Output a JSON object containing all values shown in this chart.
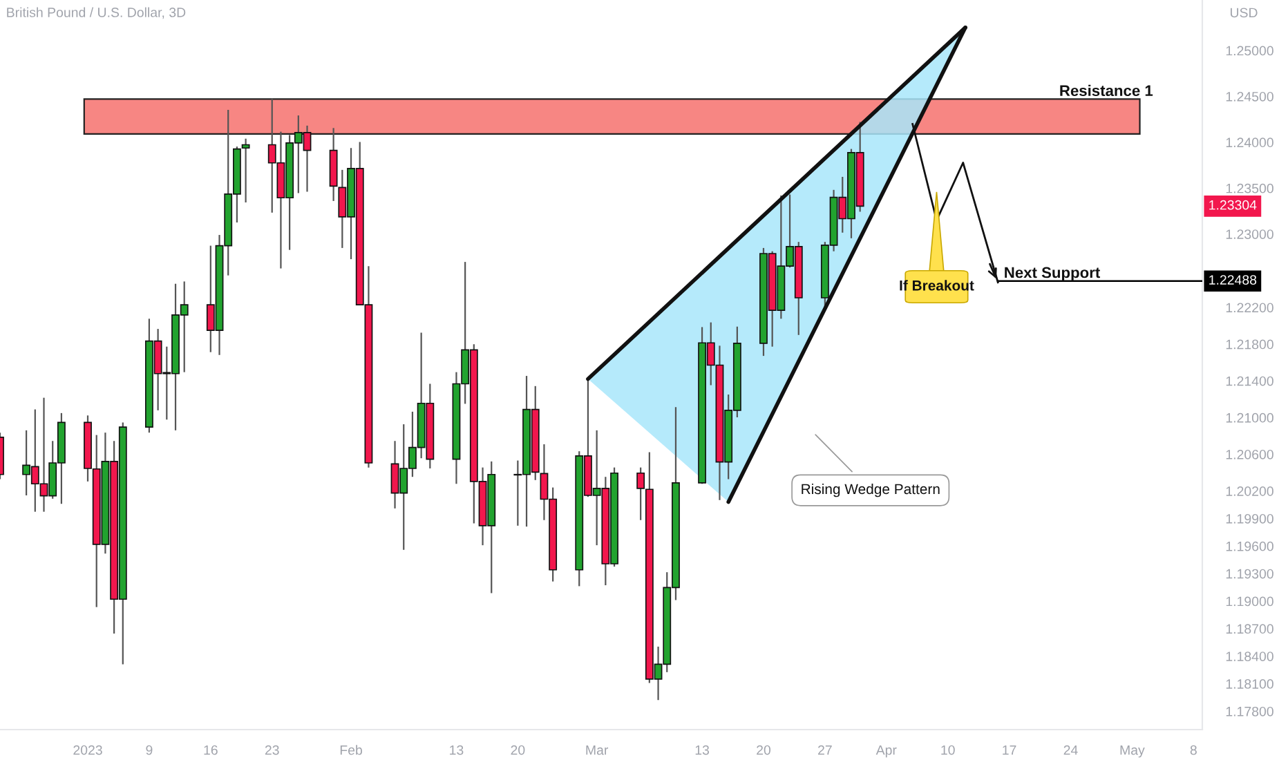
{
  "chart_data": {
    "type": "candlestick",
    "title": "British Pound / U.S. Dollar, 3D",
    "ylabel": "USD",
    "x": [
      "2022-12-23",
      "2022-12-26",
      "2022-12-27",
      "2022-12-28",
      "2022-12-29",
      "2022-12-30",
      "2023-01-02",
      "2023-01-03",
      "2023-01-04",
      "2023-01-05",
      "2023-01-06",
      "2023-01-09",
      "2023-01-10",
      "2023-01-11",
      "2023-01-12",
      "2023-01-13",
      "2023-01-16",
      "2023-01-17",
      "2023-01-18",
      "2023-01-19",
      "2023-01-20",
      "2023-01-23",
      "2023-01-24",
      "2023-01-25",
      "2023-01-26",
      "2023-01-27",
      "2023-01-30",
      "2023-01-31",
      "2023-02-01",
      "2023-02-02",
      "2023-02-03",
      "2023-02-06",
      "2023-02-07",
      "2023-02-08",
      "2023-02-09",
      "2023-02-10",
      "2023-02-13",
      "2023-02-14",
      "2023-02-15",
      "2023-02-16",
      "2023-02-17",
      "2023-02-20",
      "2023-02-21",
      "2023-02-22",
      "2023-02-23",
      "2023-02-24",
      "2023-02-27",
      "2023-02-28",
      "2023-03-01",
      "2023-03-02",
      "2023-03-03",
      "2023-03-06",
      "2023-03-07",
      "2023-03-08",
      "2023-03-09",
      "2023-03-10",
      "2023-03-13",
      "2023-03-14",
      "2023-03-15",
      "2023-03-16",
      "2023-03-17",
      "2023-03-20",
      "2023-03-21",
      "2023-03-22",
      "2023-03-23",
      "2023-03-24",
      "2023-03-27",
      "2023-03-28",
      "2023-03-29",
      "2023-03-30",
      "2023-03-31"
    ],
    "ohlc": [
      [
        1.20785,
        1.20836,
        1.20329,
        1.2038
      ],
      [
        1.2038,
        1.20861,
        1.20152,
        1.20481
      ],
      [
        1.20466,
        1.21089,
        1.19974,
        1.20278
      ],
      [
        1.20278,
        1.21216,
        1.19974,
        1.20147
      ],
      [
        1.20147,
        1.20745,
        1.20116,
        1.20506
      ],
      [
        1.20506,
        1.21049,
        1.2006,
        1.20947
      ],
      [
        1.20947,
        1.21023,
        1.20304,
        1.20446
      ],
      [
        1.2044,
        1.2081,
        1.18935,
        1.19619
      ],
      [
        1.19619,
        1.20836,
        1.19518,
        1.20522
      ],
      [
        1.20522,
        1.20745,
        1.18646,
        1.19021
      ],
      [
        1.19021,
        1.20947,
        1.18312,
        1.20897
      ],
      [
        1.20897,
        1.22077,
        1.20836,
        1.21834
      ],
      [
        1.21834,
        1.21966,
        1.21079,
        1.21479
      ],
      [
        1.21479,
        1.21773,
        1.20978,
        1.2149
      ],
      [
        1.21479,
        1.22458,
        1.20861,
        1.22118
      ],
      [
        1.22118,
        1.22483,
        1.21495,
        1.22229
      ],
      [
        1.22229,
        1.22873,
        1.21713,
        1.21951
      ],
      [
        1.21951,
        1.2299,
        1.21682,
        1.22873
      ],
      [
        1.22873,
        1.24353,
        1.22549,
        1.23436
      ],
      [
        1.23436,
        1.23953,
        1.23126,
        1.23927
      ],
      [
        1.23937,
        1.24039,
        1.23344,
        1.23973
      ],
      [
        1.23973,
        1.24475,
        1.23233,
        1.23775
      ],
      [
        1.23775,
        1.24115,
        1.22625,
        1.23395
      ],
      [
        1.23395,
        1.24079,
        1.22827,
        1.23993
      ],
      [
        1.23993,
        1.24292,
        1.23446,
        1.24105
      ],
      [
        1.24105,
        1.24181,
        1.23461,
        1.23912
      ],
      [
        1.23912,
        1.24155,
        1.2336,
        1.23522
      ],
      [
        1.23507,
        1.23699,
        1.22848,
        1.23187
      ],
      [
        1.23187,
        1.23937,
        1.22726,
        1.23714
      ],
      [
        1.23714,
        1.24003,
        1.22229,
        1.22229
      ],
      [
        1.22229,
        1.2265,
        1.20456,
        1.20506
      ],
      [
        1.20496,
        1.20745,
        1.2001,
        1.20177
      ],
      [
        1.20177,
        1.20927,
        1.19559,
        1.20446
      ],
      [
        1.20446,
        1.21064,
        1.20354,
        1.20674
      ],
      [
        1.20674,
        1.21925,
        1.20557,
        1.21155
      ],
      [
        1.21155,
        1.21368,
        1.20446,
        1.20547
      ],
      [
        1.20547,
        1.21495,
        1.20278,
        1.21368
      ],
      [
        1.21368,
        1.22696,
        1.2115,
        1.21738
      ],
      [
        1.21738,
        1.21799,
        1.19847,
        1.20304
      ],
      [
        1.20304,
        1.20456,
        1.19609,
        1.19822
      ],
      [
        1.19822,
        1.20522,
        1.19087,
        1.2038
      ],
      [
        1.20375,
        1.20532,
        1.19822,
        1.2038
      ],
      [
        1.2038,
        1.21454,
        1.19812,
        1.21089
      ],
      [
        1.21089,
        1.21343,
        1.20319,
        1.20405
      ],
      [
        1.2039,
        1.20709,
        1.19883,
        1.20111
      ],
      [
        1.20111,
        1.20238,
        1.19214,
        1.19341
      ],
      [
        1.19341,
        1.20633,
        1.19163,
        1.20582
      ],
      [
        1.20582,
        1.21419,
        1.20136,
        1.20152
      ],
      [
        1.20152,
        1.20861,
        1.19609,
        1.20228
      ],
      [
        1.20228,
        1.20354,
        1.19173,
        1.19407
      ],
      [
        1.19407,
        1.20456,
        1.19376,
        1.20395
      ],
      [
        1.20395,
        1.20456,
        1.19883,
        1.20228
      ],
      [
        1.20218,
        1.20623,
        1.18109,
        1.1815
      ],
      [
        1.1815,
        1.18504,
        1.17922,
        1.18312
      ],
      [
        1.18312,
        1.19315,
        1.18226,
        1.19148
      ],
      [
        1.19148,
        1.21114,
        1.19011,
        1.20288
      ],
      [
        1.20288,
        1.21986,
        1.20278,
        1.21814
      ],
      [
        1.21814,
        1.22037,
        1.21353,
        1.21571
      ],
      [
        1.21571,
        1.21783,
        1.20101,
        1.20516
      ],
      [
        1.20516,
        1.21251,
        1.20329,
        1.21079
      ],
      [
        1.21079,
        1.21991,
        1.21003,
        1.21809
      ],
      [
        1.21809,
        1.22848,
        1.21672,
        1.22787
      ],
      [
        1.22787,
        1.22812,
        1.21773,
        1.22169
      ],
      [
        1.22169,
        1.2342,
        1.22077,
        1.2265
      ],
      [
        1.2265,
        1.23431,
        1.22635,
        1.22863
      ],
      [
        1.22863,
        1.22914,
        1.219,
        1.22305
      ],
      [
        1.22305,
        1.22914,
        1.22179,
        1.22878
      ],
      [
        1.22878,
        1.23481,
        1.22812,
        1.234
      ],
      [
        1.234,
        1.23623,
        1.23015,
        1.23167
      ],
      [
        1.23167,
        1.23927,
        1.22954,
        1.23887
      ],
      [
        1.23887,
        1.24221,
        1.23243,
        1.23304
      ]
    ],
    "series": [
      {
        "type": "line",
        "x": [
          "2023-02-28",
          "2023-04-12"
        ],
        "values": [
          1.2142,
          1.2525
        ],
        "color": "#111111"
      },
      {
        "type": "line",
        "x": [
          "2023-03-16",
          "2023-04-12"
        ],
        "values": [
          1.2008,
          1.2525
        ],
        "color": "#111111"
      }
    ],
    "colors": [
      "#f2174d",
      "#22a32f",
      "#f2174d",
      "#f2174d",
      "#22a32f",
      "#22a32f",
      "#f2174d",
      "#f2174d",
      "#22a32f",
      "#f2174d",
      "#22a32f",
      "#22a32f",
      "#f2174d",
      "#22a32f",
      "#22a32f",
      "#22a32f",
      "#f2174d",
      "#22a32f",
      "#22a32f",
      "#22a32f",
      "#22a32f",
      "#f2174d",
      "#f2174d",
      "#22a32f",
      "#22a32f",
      "#f2174d",
      "#f2174d",
      "#f2174d",
      "#22a32f",
      "#f2174d",
      "#f2174d",
      "#f2174d",
      "#22a32f",
      "#22a32f",
      "#22a32f",
      "#f2174d",
      "#22a32f",
      "#22a32f",
      "#f2174d",
      "#f2174d",
      "#22a32f",
      "#22a32f",
      "#22a32f",
      "#f2174d",
      "#f2174d",
      "#f2174d",
      "#22a32f",
      "#f2174d",
      "#22a32f",
      "#f2174d",
      "#22a32f",
      "#f2174d",
      "#f2174d",
      "#22a32f",
      "#22a32f",
      "#22a32f",
      "#22a32f",
      "#f2174d",
      "#f2174d",
      "#22a32f",
      "#22a32f",
      "#22a32f",
      "#f2174d",
      "#22a32f",
      "#22a32f",
      "#f2174d",
      "#22a32f",
      "#22a32f",
      "#f2174d",
      "#22a32f",
      "#f2174d"
    ],
    "xlim": [
      "2022-12-23",
      "2023-05-09"
    ],
    "xticks": [
      {
        "value": "2023-01-02",
        "label": "2023"
      },
      {
        "value": "2023-01-09",
        "label": "9"
      },
      {
        "value": "2023-01-16",
        "label": "16"
      },
      {
        "value": "2023-01-23",
        "label": "23"
      },
      {
        "value": "2023-02-01",
        "label": "Feb"
      },
      {
        "value": "2023-02-13",
        "label": "13"
      },
      {
        "value": "2023-02-20",
        "label": "20"
      },
      {
        "value": "2023-03-01",
        "label": "Mar"
      },
      {
        "value": "2023-03-13",
        "label": "13"
      },
      {
        "value": "2023-03-20",
        "label": "20"
      },
      {
        "value": "2023-03-27",
        "label": "27"
      },
      {
        "value": "2023-04-03",
        "label": "Apr"
      },
      {
        "value": "2023-04-10",
        "label": "10"
      },
      {
        "value": "2023-04-17",
        "label": "17"
      },
      {
        "value": "2023-04-24",
        "label": "24"
      },
      {
        "value": "2023-05-01",
        "label": "May"
      },
      {
        "value": "2023-05-08",
        "label": "8"
      }
    ],
    "ylim": [
      1.176,
      1.2555
    ],
    "yticks": [
      {
        "value": 1.25,
        "label": "1.25000"
      },
      {
        "value": 1.245,
        "label": "1.24500"
      },
      {
        "value": 1.24,
        "label": "1.24000"
      },
      {
        "value": 1.235,
        "label": "1.23500"
      },
      {
        "value": 1.23,
        "label": "1.23000"
      },
      {
        "value": 1.222,
        "label": "1.22200"
      },
      {
        "value": 1.218,
        "label": "1.21800"
      },
      {
        "value": 1.214,
        "label": "1.21400"
      },
      {
        "value": 1.21,
        "label": "1.21000"
      },
      {
        "value": 1.206,
        "label": "1.20600"
      },
      {
        "value": 1.202,
        "label": "1.20200"
      },
      {
        "value": 1.199,
        "label": "1.19900"
      },
      {
        "value": 1.196,
        "label": "1.19600"
      },
      {
        "value": 1.193,
        "label": "1.19300"
      },
      {
        "value": 1.19,
        "label": "1.19000"
      },
      {
        "value": 1.187,
        "label": "1.18700"
      },
      {
        "value": 1.184,
        "label": "1.18400"
      },
      {
        "value": 1.181,
        "label": "1.18100"
      },
      {
        "value": 1.178,
        "label": "1.17800"
      }
    ],
    "bands": [
      {
        "axis": "y",
        "from": 1.2409,
        "to": 1.2447,
        "label": "Resistance 1",
        "color": "#f78683"
      }
    ],
    "ref_lines": [
      {
        "axis": "y",
        "value": 1.22488,
        "label": "Next Support",
        "color": "#000000"
      }
    ],
    "annotations": [
      {
        "text": "1.23304",
        "y": 1.23304
      },
      {
        "text": "1.22488",
        "y": 1.22488
      },
      "If Breakout",
      "Rising Wedge Pattern"
    ],
    "grid": false,
    "legend": false
  }
}
